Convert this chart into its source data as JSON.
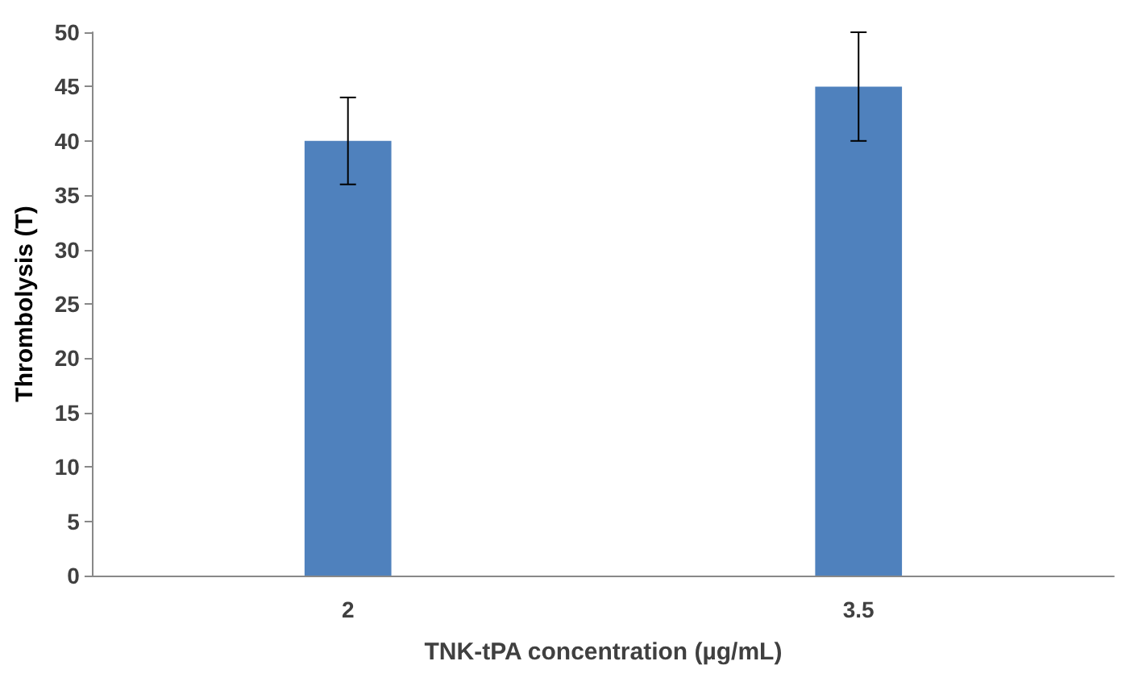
{
  "chart_data": {
    "type": "bar",
    "xlabel": "TNK-tPA concentration (µg/mL)",
    "ylabel": "Thrombolysis (T)",
    "categories": [
      "2",
      "3.5"
    ],
    "values": [
      40,
      45
    ],
    "errors": [
      4,
      5
    ],
    "color": "#4f81bd",
    "ylim": [
      0,
      50
    ],
    "yticks": [
      0,
      5,
      10,
      15,
      20,
      25,
      30,
      35,
      40,
      45,
      50
    ],
    "grid": false
  }
}
